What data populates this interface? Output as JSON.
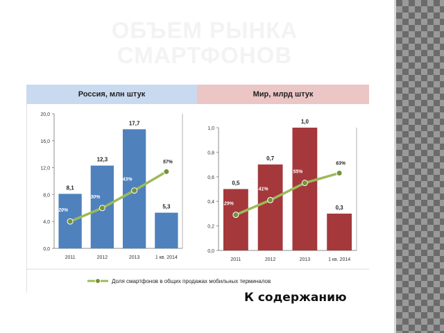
{
  "slide": {
    "title": "ОБЪЕМ РЫНКА СМАРТФОНОВ",
    "link_label": "К содержанию"
  },
  "colors": {
    "russia_bar": "#4f81bd",
    "world_bar": "#a5383b",
    "line": "#9bbb59",
    "title": "#f3f3f3"
  },
  "chart_data": [
    {
      "type": "bar",
      "title": "Россия, млн штук",
      "categories": [
        "2011",
        "2012",
        "2013",
        "1 кв. 2014"
      ],
      "series": [
        {
          "values": [
            8.1,
            12.3,
            17.7,
            5.3
          ],
          "labels": [
            "8,1",
            "12,3",
            "17,7",
            "5,3"
          ]
        }
      ],
      "line_series": {
        "name": "Доля смартфонов в общих продажах мобильных терминалов",
        "values": [
          20,
          30,
          43,
          57
        ],
        "labels": [
          "20%",
          "30%",
          "43%",
          "57%"
        ],
        "ylim": [
          0,
          100
        ]
      },
      "ylim": [
        0,
        20
      ],
      "yticks": [
        0,
        4,
        8,
        12,
        16,
        20
      ],
      "ytick_labels": [
        "0,0",
        "4,0",
        "8,0",
        "12,0",
        "16,0",
        "20,0"
      ],
      "xlabel": "",
      "ylabel": ""
    },
    {
      "type": "bar",
      "title": "Мир, млрд штук",
      "categories": [
        "2011",
        "2012",
        "2013",
        "1 кв. 2014"
      ],
      "series": [
        {
          "values": [
            0.5,
            0.7,
            1.0,
            0.3
          ],
          "labels": [
            "0,5",
            "0,7",
            "1,0",
            "0,3"
          ]
        }
      ],
      "line_series": {
        "name": "Доля смартфонов в общих продажах мобильных терминалов",
        "values": [
          29,
          41,
          55,
          63
        ],
        "labels": [
          "29%",
          "41%",
          "55%",
          "63%"
        ],
        "ylim": [
          0,
          100
        ]
      },
      "ylim": [
        0,
        1.0
      ],
      "yticks": [
        0,
        0.2,
        0.4,
        0.6,
        0.8,
        1.0
      ],
      "ytick_labels": [
        "0,0",
        "0,2",
        "0,4",
        "0,6",
        "0,8",
        "1,0"
      ],
      "xlabel": "",
      "ylabel": ""
    }
  ],
  "legend": {
    "label": "Доля смартфонов в общих продажах мобильных терминалов",
    "position": "bottom"
  }
}
